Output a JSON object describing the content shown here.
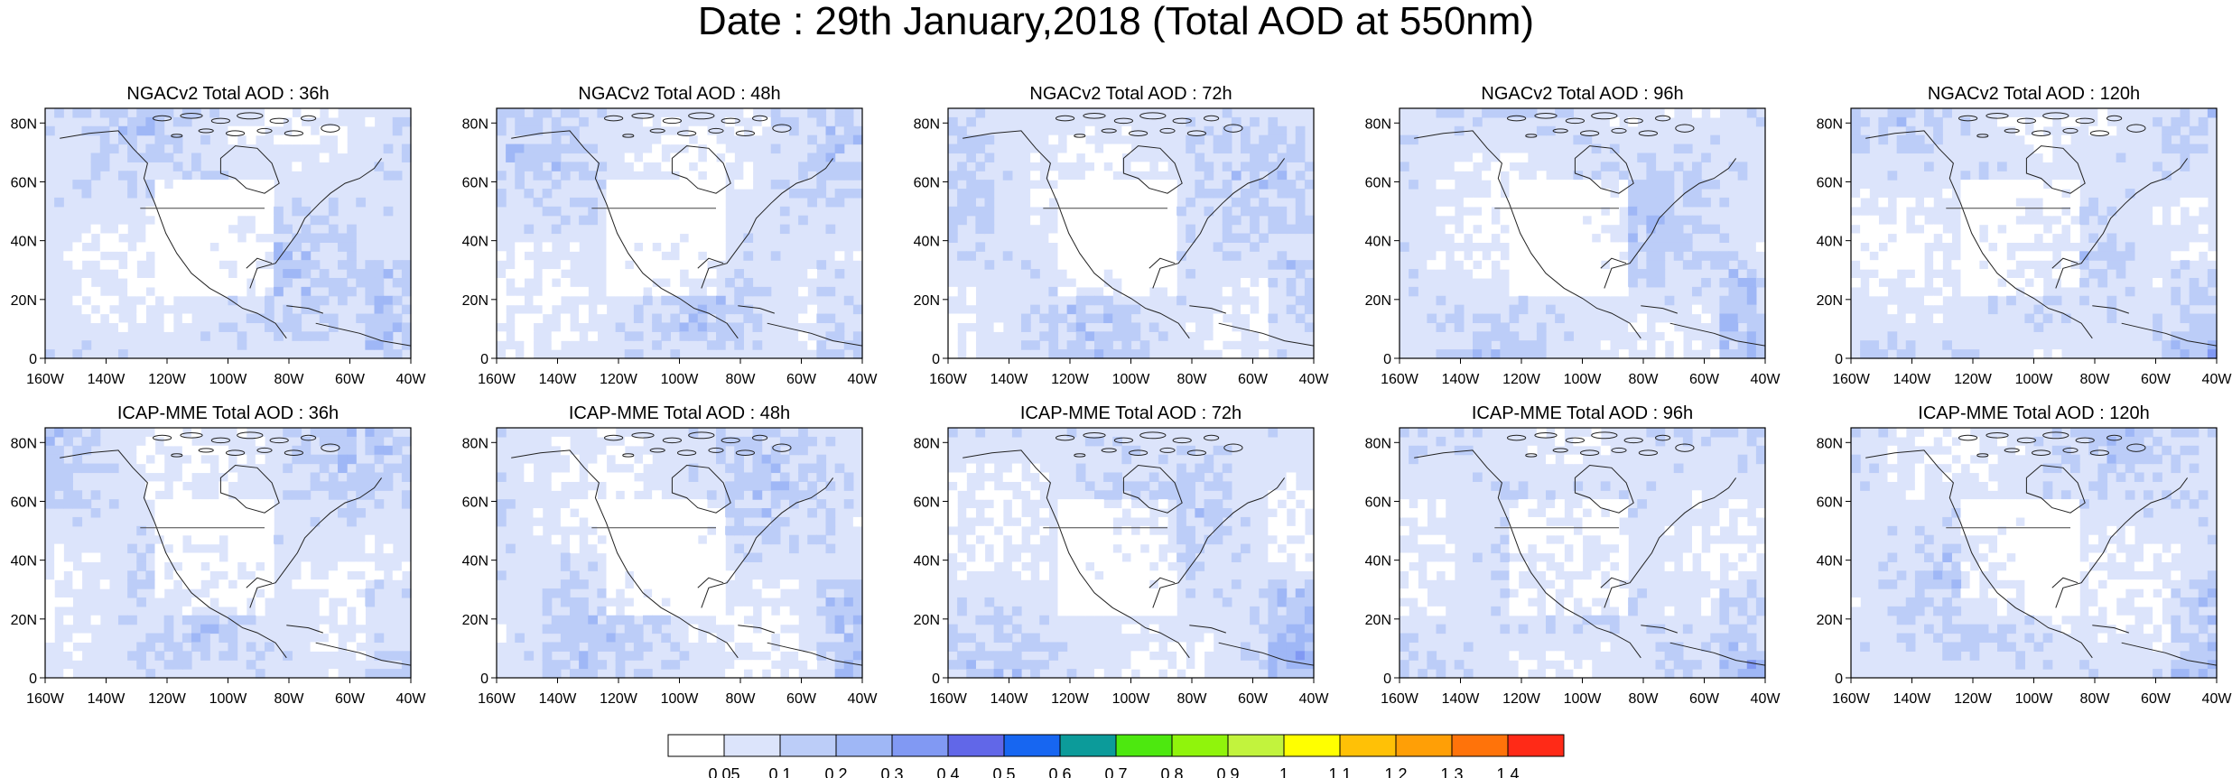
{
  "title": "Date : 29th January,2018 (Total AOD at 550nm)",
  "panels": [
    {
      "title": "NGACv2 Total AOD : 36h",
      "row": 0,
      "col": 0
    },
    {
      "title": "NGACv2 Total AOD : 48h",
      "row": 0,
      "col": 1
    },
    {
      "title": "NGACv2 Total AOD : 72h",
      "row": 0,
      "col": 2
    },
    {
      "title": "NGACv2 Total AOD : 96h",
      "row": 0,
      "col": 3
    },
    {
      "title": "NGACv2 Total AOD : 120h",
      "row": 0,
      "col": 4
    },
    {
      "title": "ICAP-MME Total AOD : 36h",
      "row": 1,
      "col": 0
    },
    {
      "title": "ICAP-MME Total AOD : 48h",
      "row": 1,
      "col": 1
    },
    {
      "title": "ICAP-MME Total AOD : 72h",
      "row": 1,
      "col": 2
    },
    {
      "title": "ICAP-MME Total AOD : 96h",
      "row": 1,
      "col": 3
    },
    {
      "title": "ICAP-MME Total AOD : 120h",
      "row": 1,
      "col": 4
    }
  ],
  "lat_ticks": [
    "80N",
    "60N",
    "40N",
    "20N",
    "0"
  ],
  "lon_ticks": [
    "160W",
    "140W",
    "120W",
    "100W",
    "80W",
    "60W",
    "40W"
  ],
  "colorbar": {
    "labels": [
      "0.05",
      "0.1",
      "0.2",
      "0.3",
      "0.4",
      "0.5",
      "0.6",
      "0.7",
      "0.8",
      "0.9",
      "1",
      "1.1",
      "1.2",
      "1.3",
      "1.4"
    ],
    "colors": [
      "#ffffff",
      "#dce4fb",
      "#bccdf8",
      "#9fb7f6",
      "#8199f3",
      "#6167e8",
      "#1766f1",
      "#0c9b9a",
      "#4de80f",
      "#90f40c",
      "#c2f33d",
      "#ffff00",
      "#ffc106",
      "#ff9f06",
      "#ff730a",
      "#ff2a17"
    ]
  }
}
